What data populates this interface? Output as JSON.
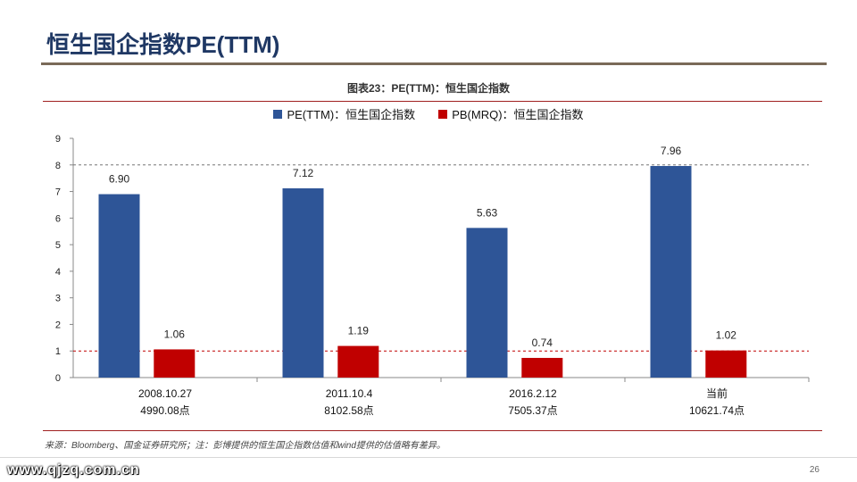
{
  "page": {
    "title": "恒生国企指数PE(TTM)",
    "chart_title": "图表23：PE(TTM)：恒生国企指数",
    "source": "来源：Bloomberg、国金证券研究所；注：彭博提供的恒生国企指数估值和wind提供的估值略有差异。",
    "watermark": "www.qjzq.com.cn",
    "page_number": "26"
  },
  "colors": {
    "pe": "#2e5597",
    "pb": "#c00000",
    "refline": "#c00000"
  },
  "chart_data": {
    "type": "bar",
    "categories": [
      "2008.10.27",
      "2011.10.4",
      "2016.2.12",
      "当前"
    ],
    "category_sublabels": [
      "4990.08点",
      "8102.58点",
      "7505.37点",
      "10621.74点"
    ],
    "series": [
      {
        "name": "PE(TTM)：恒生国企指数",
        "values": [
          6.9,
          7.12,
          5.63,
          7.96
        ],
        "labels": [
          "6.90",
          "7.12",
          "5.63",
          "7.96"
        ]
      },
      {
        "name": "PB(MRQ)：恒生国企指数",
        "values": [
          1.06,
          1.19,
          0.74,
          1.02
        ],
        "labels": [
          "1.06",
          "1.19",
          "0.74",
          "1.02"
        ]
      }
    ],
    "ylim": [
      0,
      9
    ],
    "yticks": [
      "0",
      "1",
      "2",
      "3",
      "4",
      "5",
      "6",
      "7",
      "8",
      "9"
    ],
    "reference_lines": [
      8,
      1
    ],
    "legend_position": "top-center",
    "grid": false
  }
}
